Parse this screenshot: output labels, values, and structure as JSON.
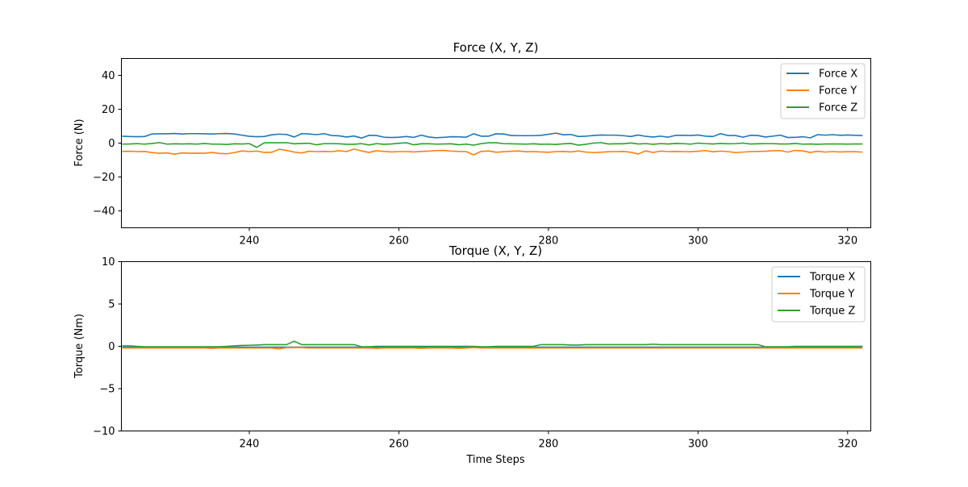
{
  "chart_data": [
    {
      "type": "line",
      "title": "Force (X, Y, Z)",
      "xlabel": "",
      "ylabel": "Force (N)",
      "xlim": [
        222.9,
        323.1
      ],
      "ylim": [
        -50,
        50
      ],
      "xticks": [
        240,
        260,
        280,
        300,
        320
      ],
      "yticks": [
        40,
        20,
        0,
        -20,
        -40
      ],
      "legend_position": "top-right",
      "x_start": 223,
      "x_step": 1,
      "series": [
        {
          "name": "Force X",
          "color": "#1f77b4",
          "values": [
            4.1,
            3.9,
            3.8,
            3.9,
            5.4,
            5.5,
            5.5,
            5.7,
            5.4,
            5.6,
            5.6,
            5.5,
            5.4,
            5.6,
            5.7,
            5.4,
            4.7,
            4.0,
            3.8,
            3.9,
            4.9,
            5.3,
            5.1,
            3.6,
            5.6,
            5.4,
            5.0,
            5.6,
            4.5,
            4.3,
            3.6,
            4.2,
            3.0,
            4.6,
            4.5,
            3.5,
            3.3,
            3.5,
            3.9,
            3.4,
            4.7,
            3.6,
            3.2,
            3.4,
            3.8,
            3.7,
            3.5,
            5.5,
            4.1,
            4.1,
            5.5,
            5.4,
            4.5,
            4.4,
            4.4,
            4.4,
            4.6,
            5.2,
            5.9,
            4.9,
            5.1,
            3.9,
            4.1,
            4.5,
            4.8,
            4.7,
            4.7,
            4.4,
            3.9,
            4.8,
            4.0,
            3.6,
            4.1,
            3.5,
            4.6,
            4.6,
            4.5,
            4.8,
            4.1,
            3.9,
            5.6,
            4.5,
            4.5,
            3.5,
            4.6,
            4.5,
            3.6,
            4.1,
            4.7,
            3.3,
            3.4,
            3.8,
            3.1,
            5.0,
            4.7,
            5.0,
            4.6,
            4.8,
            4.6,
            4.5
          ]
        },
        {
          "name": "Force Y",
          "color": "#ff7f0e",
          "values": [
            -4.9,
            -4.8,
            -5.0,
            -4.9,
            -5.6,
            -6.0,
            -5.8,
            -6.5,
            -5.8,
            -6.0,
            -5.9,
            -6.0,
            -5.5,
            -6.1,
            -6.3,
            -5.6,
            -4.6,
            -5.0,
            -4.7,
            -5.5,
            -5.4,
            -3.6,
            -4.3,
            -5.3,
            -5.8,
            -4.8,
            -5.0,
            -4.9,
            -5.0,
            -4.5,
            -5.0,
            -3.5,
            -4.6,
            -5.5,
            -4.5,
            -4.9,
            -5.2,
            -5.0,
            -5.0,
            -5.2,
            -4.9,
            -4.7,
            -4.4,
            -4.3,
            -4.7,
            -4.9,
            -5.0,
            -6.9,
            -4.9,
            -4.6,
            -5.4,
            -5.1,
            -4.8,
            -4.6,
            -5.1,
            -5.0,
            -5.2,
            -5.4,
            -5.0,
            -4.9,
            -5.2,
            -4.6,
            -5.3,
            -5.6,
            -5.4,
            -5.1,
            -5.0,
            -4.9,
            -5.4,
            -6.4,
            -4.6,
            -5.5,
            -4.7,
            -5.0,
            -4.9,
            -5.0,
            -5.1,
            -4.8,
            -4.4,
            -5.1,
            -4.7,
            -5.0,
            -5.6,
            -5.3,
            -5.0,
            -4.9,
            -4.8,
            -4.5,
            -4.4,
            -5.3,
            -4.3,
            -4.6,
            -5.5,
            -4.8,
            -5.3,
            -5.0,
            -5.2,
            -5.1,
            -5.1,
            -5.3
          ]
        },
        {
          "name": "Force Z",
          "color": "#2ca02c",
          "values": [
            -0.6,
            -0.5,
            -0.3,
            -0.6,
            -0.2,
            0.3,
            -0.6,
            -0.4,
            -0.5,
            -0.4,
            -0.6,
            -0.2,
            -0.6,
            -0.6,
            -0.8,
            -0.4,
            -0.5,
            -0.3,
            -2.5,
            0.2,
            0.2,
            0.2,
            0.3,
            -0.4,
            -0.2,
            -0.1,
            -1.0,
            -0.3,
            -0.3,
            -0.4,
            -0.7,
            -0.7,
            -0.3,
            -1.1,
            -0.3,
            -0.7,
            -0.5,
            -0.1,
            0.2,
            -1.0,
            -0.4,
            -0.4,
            -0.6,
            -0.5,
            -0.4,
            -1.0,
            -0.6,
            -1.2,
            -0.3,
            0.2,
            0.2,
            -0.3,
            -0.4,
            -0.5,
            -0.6,
            -0.4,
            -0.7,
            -0.6,
            -0.8,
            -0.4,
            -0.2,
            -1.2,
            -0.7,
            0.0,
            0.3,
            -0.5,
            -0.4,
            -0.4,
            0.1,
            -0.5,
            -0.3,
            -0.7,
            -0.3,
            -0.5,
            -0.2,
            -0.3,
            -0.6,
            0.0,
            -0.3,
            -0.5,
            -0.2,
            -0.4,
            -0.3,
            0.0,
            -0.5,
            -0.4,
            -0.3,
            -0.3,
            -0.5,
            -0.5,
            -0.2,
            -0.6,
            -0.5,
            -0.7,
            -0.5,
            -0.5,
            -0.5,
            -0.6,
            -0.5,
            -0.5
          ]
        }
      ]
    },
    {
      "type": "line",
      "title": "Torque (X, Y, Z)",
      "xlabel": "Time Steps",
      "ylabel": "Torque (Nm)",
      "xlim": [
        222.9,
        323.1
      ],
      "ylim": [
        -10,
        10
      ],
      "xticks": [
        240,
        260,
        280,
        300,
        320
      ],
      "yticks": [
        10,
        5,
        0,
        -5,
        -10
      ],
      "legend_position": "top-right",
      "x_start": 223,
      "x_step": 1,
      "series": [
        {
          "name": "Torque X",
          "color": "#1f77b4",
          "values": [
            -0.1,
            -0.1,
            -0.1,
            -0.1,
            -0.1,
            -0.1,
            -0.1,
            -0.1,
            -0.1,
            -0.1,
            -0.1,
            -0.1,
            -0.1,
            -0.1,
            -0.1,
            -0.1,
            -0.1,
            -0.1,
            -0.1,
            -0.1,
            -0.1,
            -0.1,
            -0.1,
            -0.1,
            -0.1,
            -0.1,
            -0.1,
            -0.1,
            -0.1,
            -0.1,
            -0.1,
            -0.1,
            -0.1,
            -0.1,
            -0.1,
            -0.1,
            -0.1,
            -0.1,
            -0.1,
            -0.1,
            -0.1,
            -0.1,
            -0.1,
            -0.1,
            -0.1,
            -0.1,
            -0.1,
            -0.1,
            -0.1,
            -0.1,
            -0.1,
            -0.1,
            -0.1,
            -0.1,
            -0.1,
            -0.1,
            -0.1,
            -0.1,
            -0.1,
            -0.1,
            -0.1,
            -0.1,
            -0.1,
            -0.1,
            -0.1,
            -0.1,
            -0.1,
            -0.1,
            -0.1,
            -0.1,
            -0.1,
            -0.1,
            -0.1,
            -0.1,
            -0.1,
            -0.1,
            -0.1,
            -0.1,
            -0.1,
            -0.1,
            -0.1,
            -0.1,
            -0.1,
            -0.1,
            -0.1,
            -0.1,
            -0.1,
            -0.1,
            -0.1,
            -0.1,
            -0.1,
            -0.1,
            -0.1,
            -0.1,
            -0.1,
            -0.1,
            -0.1,
            -0.1,
            -0.1,
            -0.1
          ]
        },
        {
          "name": "Torque Y",
          "color": "#ff7f0e",
          "values": [
            -0.2,
            -0.2,
            -0.2,
            -0.2,
            -0.2,
            -0.2,
            -0.2,
            -0.2,
            -0.2,
            -0.2,
            -0.2,
            -0.2,
            -0.25,
            -0.2,
            -0.2,
            -0.2,
            -0.2,
            -0.2,
            -0.2,
            -0.2,
            -0.2,
            -0.3,
            -0.15,
            -0.15,
            -0.15,
            -0.2,
            -0.2,
            -0.2,
            -0.2,
            -0.2,
            -0.2,
            -0.2,
            -0.2,
            -0.2,
            -0.25,
            -0.2,
            -0.2,
            -0.2,
            -0.2,
            -0.2,
            -0.25,
            -0.2,
            -0.2,
            -0.2,
            -0.2,
            -0.25,
            -0.2,
            -0.15,
            -0.2,
            -0.2,
            -0.2,
            -0.2,
            -0.2,
            -0.2,
            -0.2,
            -0.2,
            -0.2,
            -0.2,
            -0.2,
            -0.2,
            -0.2,
            -0.2,
            -0.2,
            -0.2,
            -0.2,
            -0.2,
            -0.2,
            -0.2,
            -0.2,
            -0.2,
            -0.2,
            -0.2,
            -0.2,
            -0.2,
            -0.2,
            -0.2,
            -0.2,
            -0.2,
            -0.2,
            -0.2,
            -0.2,
            -0.2,
            -0.2,
            -0.2,
            -0.2,
            -0.2,
            -0.2,
            -0.2,
            -0.2,
            -0.2,
            -0.2,
            -0.2,
            -0.2,
            -0.2,
            -0.2,
            -0.2,
            -0.2,
            -0.2,
            -0.2,
            -0.2
          ]
        },
        {
          "name": "Torque Z",
          "color": "#2ca02c",
          "values": [
            0.05,
            0.05,
            0.0,
            -0.05,
            -0.05,
            -0.05,
            -0.05,
            -0.05,
            -0.05,
            -0.05,
            -0.05,
            -0.05,
            -0.05,
            -0.05,
            0.0,
            0.05,
            0.1,
            0.12,
            0.15,
            0.2,
            0.2,
            0.2,
            0.2,
            0.6,
            0.2,
            0.2,
            0.2,
            0.2,
            0.2,
            0.2,
            0.2,
            0.2,
            -0.05,
            -0.05,
            0.0,
            0.0,
            0.0,
            0.0,
            0.0,
            0.0,
            0.0,
            0.0,
            0.0,
            0.0,
            0.0,
            0.0,
            0.0,
            0.0,
            -0.05,
            -0.05,
            0.0,
            0.0,
            0.0,
            0.0,
            0.0,
            0.0,
            0.2,
            0.2,
            0.2,
            0.2,
            0.15,
            0.15,
            0.2,
            0.2,
            0.2,
            0.2,
            0.2,
            0.2,
            0.2,
            0.2,
            0.2,
            0.25,
            0.2,
            0.2,
            0.2,
            0.2,
            0.2,
            0.2,
            0.2,
            0.2,
            0.2,
            0.2,
            0.2,
            0.2,
            0.2,
            0.2,
            -0.05,
            -0.05,
            -0.05,
            -0.05,
            0.0,
            0.0,
            0.0,
            0.0,
            0.0,
            0.0,
            0.0,
            0.0,
            0.0,
            0.0
          ]
        }
      ]
    }
  ]
}
